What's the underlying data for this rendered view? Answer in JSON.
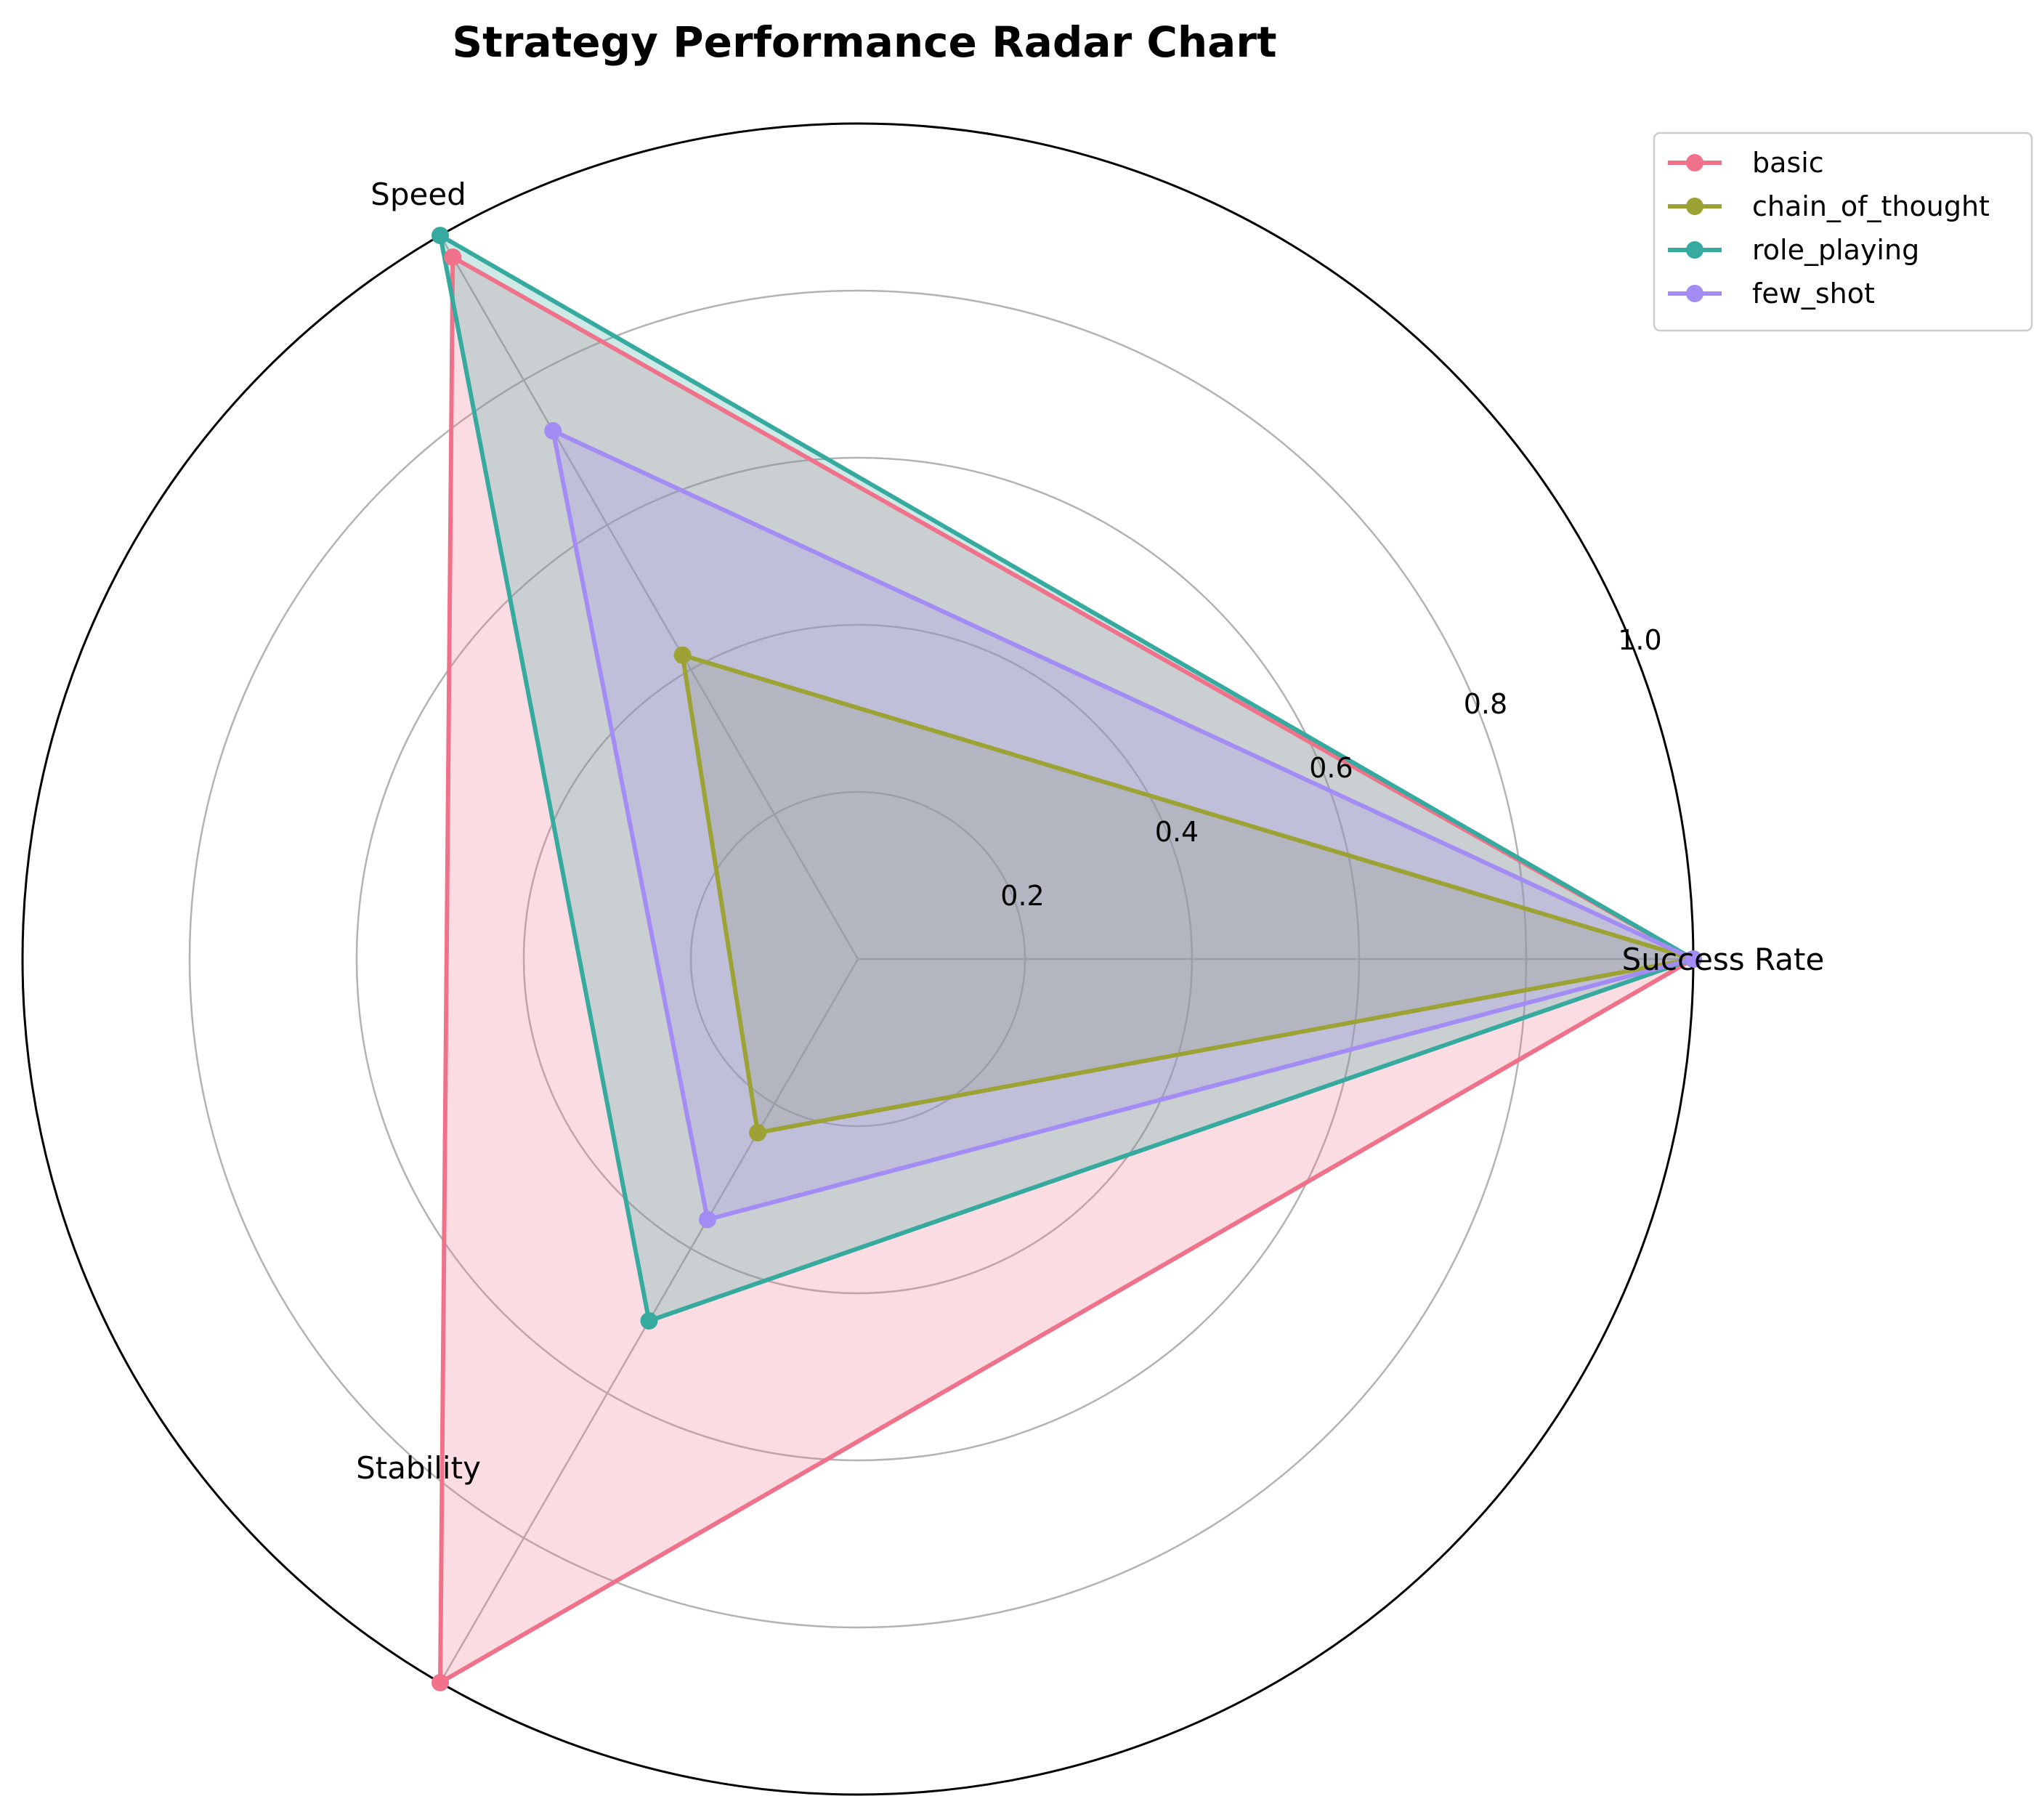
{
  "chart_data": {
    "type": "radar",
    "title": "Strategy Performance Radar Chart",
    "axes": [
      "Success Rate",
      "Speed",
      "Stability"
    ],
    "rlim": [
      0,
      1.0
    ],
    "rticks": [
      0.2,
      0.4,
      0.6,
      0.8,
      1.0
    ],
    "rtick_labels": [
      "0.2",
      "0.4",
      "0.6",
      "0.8",
      "1.0"
    ],
    "grid": true,
    "legend_position": "top-right",
    "series": [
      {
        "name": "basic",
        "values": [
          1.0,
          0.97,
          1.0
        ],
        "color": "#f0728a"
      },
      {
        "name": "chain_of_thought",
        "values": [
          1.0,
          0.42,
          0.24
        ],
        "color": "#9ca234"
      },
      {
        "name": "role_playing",
        "values": [
          1.0,
          1.0,
          0.5
        ],
        "color": "#36aa9e"
      },
      {
        "name": "few_shot",
        "values": [
          1.0,
          0.73,
          0.36
        ],
        "color": "#a38cf4"
      }
    ]
  }
}
